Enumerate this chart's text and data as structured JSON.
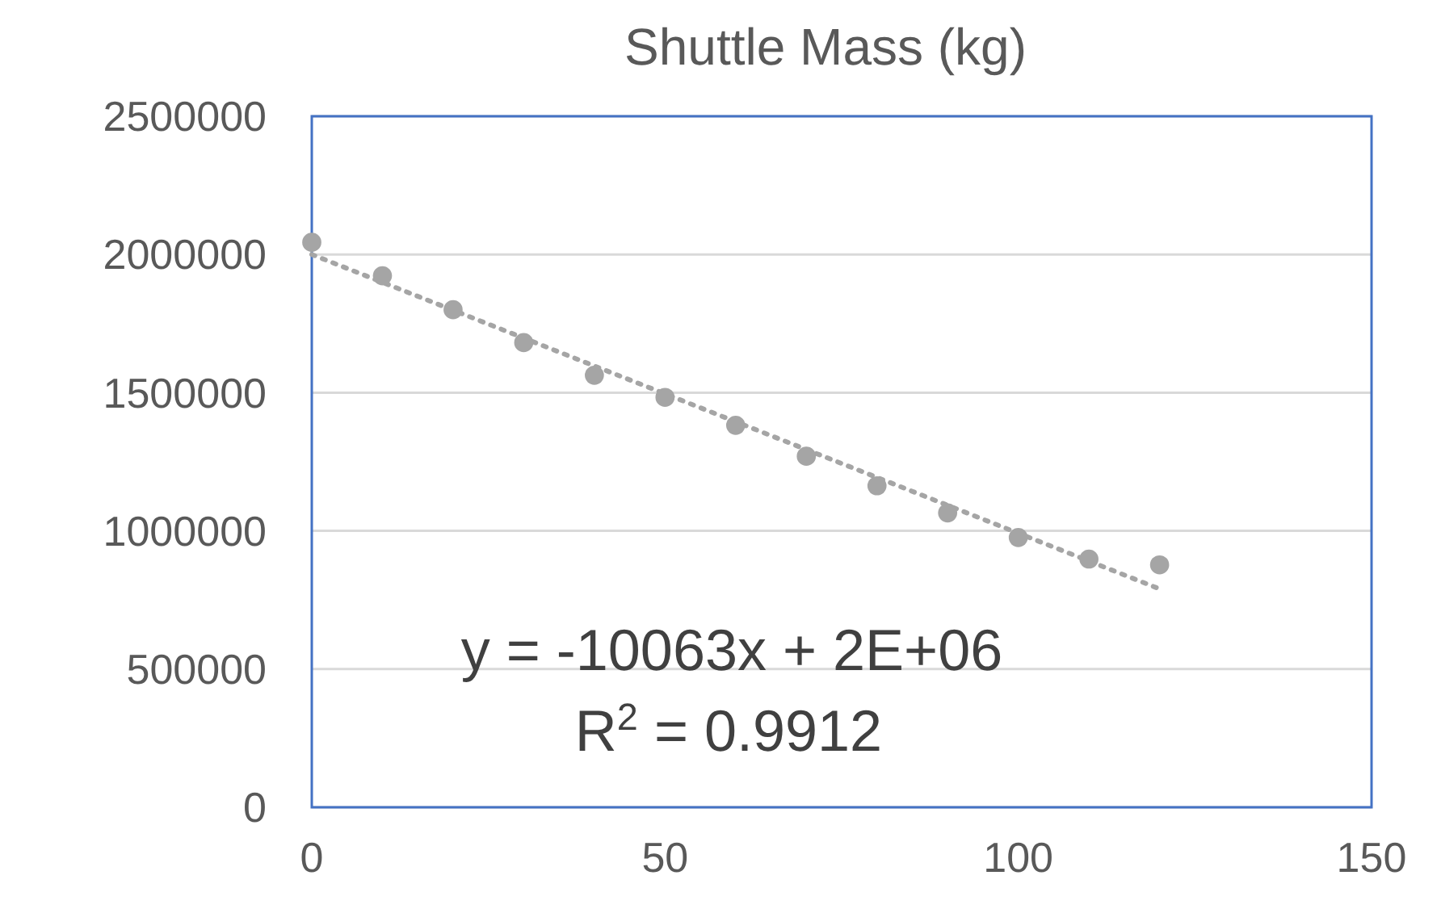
{
  "chart_data": {
    "type": "scatter",
    "title": "Shuttle Mass (kg)",
    "x": [
      0,
      10,
      20,
      30,
      40,
      50,
      60,
      70,
      80,
      90,
      100,
      110,
      120
    ],
    "series": [
      {
        "color": "#a5a5a5",
        "marker": "circle",
        "values": [
          2044000,
          1923000,
          1800000,
          1681000,
          1563000,
          1483000,
          1382000,
          1270000,
          1163000,
          1065000,
          976000,
          898000,
          877000
        ]
      },
      {
        "type": "line",
        "color": "#a5a5a5",
        "line_style": "dotted",
        "x": [
          0,
          120
        ],
        "values": [
          2000000,
          790000
        ]
      }
    ],
    "xlim": [
      0,
      150
    ],
    "xticks": [
      0,
      50,
      100,
      150
    ],
    "ylim": [
      0,
      2500000
    ],
    "yticks": [
      0,
      500000,
      1000000,
      1500000,
      2000000,
      2500000
    ],
    "grid": "y",
    "annotations": [
      "y = -10063x + 2E+06",
      "R$^{2}$ = 0.9912"
    ]
  }
}
